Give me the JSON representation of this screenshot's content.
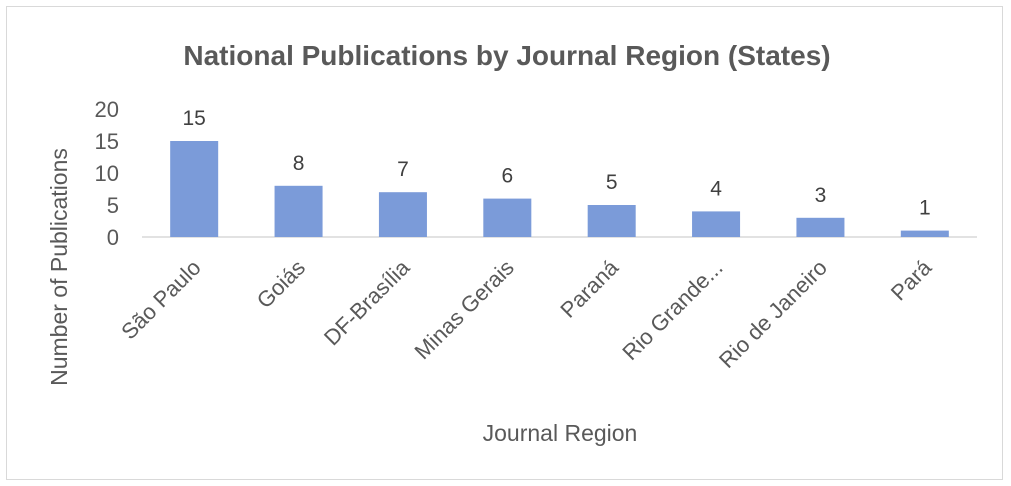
{
  "chart_data": {
    "type": "bar",
    "title": "National Publications by Journal Region (States)",
    "xlabel": "Journal Region",
    "ylabel": "Number of Publications",
    "categories": [
      "São Paulo",
      "Goiás",
      "DF-Brasília",
      "Minas Gerais",
      "Paraná",
      "Rio Grande...",
      "Rio de Janeiro",
      "Pará"
    ],
    "values": [
      15,
      8,
      7,
      6,
      5,
      4,
      3,
      1
    ],
    "ylim": [
      0,
      20
    ],
    "yticks": [
      0,
      5,
      10,
      15,
      20
    ],
    "grid": false,
    "legend": "none",
    "data_labels": true,
    "colors": {
      "bar": "#7b9bd9",
      "text": "#595959",
      "axis": "#d9d9d9"
    }
  }
}
